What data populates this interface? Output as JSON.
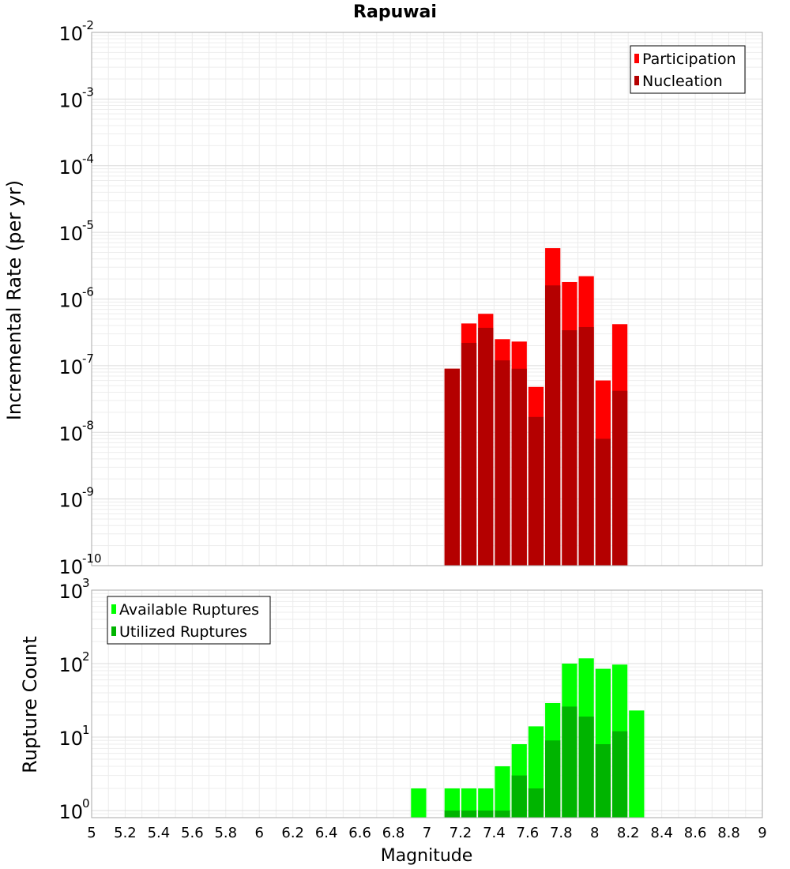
{
  "chart_data": [
    {
      "type": "bar",
      "title": "Rapuwai",
      "ylabel": "Incremental Rate (per yr)",
      "xlabel": "",
      "yscale": "log",
      "ylim": [
        1e-10,
        0.01
      ],
      "xlim": [
        5,
        9
      ],
      "grid": true,
      "legend_position": "top-right",
      "bin_width": 0.1,
      "overlay": true,
      "yticks": [
        {
          "base": "10",
          "exp": "-10",
          "value": 1e-10
        },
        {
          "base": "10",
          "exp": "-9",
          "value": 1e-09
        },
        {
          "base": "10",
          "exp": "-8",
          "value": 1e-08
        },
        {
          "base": "10",
          "exp": "-7",
          "value": 1e-07
        },
        {
          "base": "10",
          "exp": "-6",
          "value": 1e-06
        },
        {
          "base": "10",
          "exp": "-5",
          "value": 1e-05
        },
        {
          "base": "10",
          "exp": "-4",
          "value": 0.0001
        },
        {
          "base": "10",
          "exp": "-3",
          "value": 0.001
        },
        {
          "base": "10",
          "exp": "-2",
          "value": 0.01
        }
      ],
      "x": [
        7.15,
        7.25,
        7.35,
        7.45,
        7.55,
        7.65,
        7.75,
        7.85,
        7.95,
        8.05,
        8.15
      ],
      "series": [
        {
          "name": "Participation",
          "color": "#ff0000",
          "values": [
            9e-08,
            4.3e-07,
            6e-07,
            2.5e-07,
            2.3e-07,
            4.8e-08,
            5.8e-06,
            1.8e-06,
            2.2e-06,
            6e-08,
            4.2e-07
          ]
        },
        {
          "name": "Nucleation",
          "color": "#b40000",
          "values": [
            9e-08,
            2.2e-07,
            3.7e-07,
            1.2e-07,
            9e-08,
            1.7e-08,
            1.6e-06,
            3.4e-07,
            3.8e-07,
            8e-09,
            4.2e-08
          ]
        }
      ]
    },
    {
      "type": "bar",
      "title": "",
      "ylabel": "Rupture Count",
      "xlabel": "Magnitude",
      "yscale": "log",
      "ylim": [
        0.8,
        1000
      ],
      "xlim": [
        5,
        9
      ],
      "grid": true,
      "legend_position": "top-left",
      "bin_width": 0.1,
      "overlay": true,
      "yticks": [
        {
          "base": "10",
          "exp": "0",
          "value": 1
        },
        {
          "base": "10",
          "exp": "1",
          "value": 10
        },
        {
          "base": "10",
          "exp": "2",
          "value": 100
        },
        {
          "base": "10",
          "exp": "3",
          "value": 1000
        }
      ],
      "xticks": [
        "5",
        "5.2",
        "5.4",
        "5.6",
        "5.8",
        "6",
        "6.2",
        "6.4",
        "6.6",
        "6.8",
        "7",
        "7.2",
        "7.4",
        "7.6",
        "7.8",
        "8",
        "8.2",
        "8.4",
        "8.6",
        "8.8",
        "9"
      ],
      "x": [
        6.95,
        7.15,
        7.25,
        7.35,
        7.45,
        7.55,
        7.65,
        7.75,
        7.85,
        7.95,
        8.05,
        8.15,
        8.25
      ],
      "series": [
        {
          "name": "Available Ruptures",
          "color": "#00ff00",
          "values": [
            2,
            2,
            2,
            2,
            4,
            8,
            14,
            29,
            100,
            118,
            85,
            97,
            23
          ]
        },
        {
          "name": "Utilized Ruptures",
          "color": "#00b400",
          "values": [
            0,
            1,
            1,
            1,
            1,
            3,
            2,
            9,
            26,
            19,
            8,
            12,
            0
          ]
        }
      ]
    }
  ]
}
